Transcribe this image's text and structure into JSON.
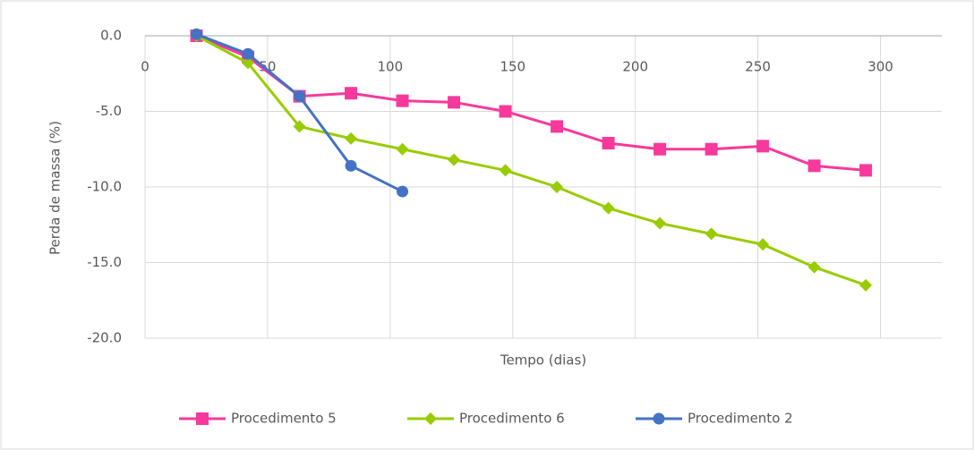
{
  "chart_data": {
    "type": "line",
    "xlabel": "Tempo (dias)",
    "ylabel": "Perda de massa (%)",
    "xlim": [
      0,
      325
    ],
    "xticks": [
      0,
      50,
      100,
      150,
      200,
      250,
      300
    ],
    "ylim": [
      -20,
      0
    ],
    "yticks": [
      {
        "value": 0,
        "label": "0.0"
      },
      {
        "value": -5,
        "label": "-5.0"
      },
      {
        "value": -10,
        "label": "-10.0"
      },
      {
        "value": -15,
        "label": "-15.0"
      },
      {
        "value": -20,
        "label": "-20.0"
      }
    ],
    "grid": true,
    "legend": "bottom",
    "series": [
      {
        "name": "Procedimento 5",
        "color": "#f7399c",
        "marker": "square",
        "x": [
          21,
          42,
          63,
          84,
          105,
          126,
          147,
          168,
          189,
          210,
          231,
          252,
          273,
          294
        ],
        "values": [
          0,
          -1.4,
          -4.0,
          -3.8,
          -4.3,
          -4.4,
          -5.0,
          -6.0,
          -7.1,
          -7.5,
          -7.5,
          -7.3,
          -8.6,
          -8.9
        ]
      },
      {
        "name": "Procedimento 6",
        "color": "#99cc00",
        "marker": "diamond",
        "x": [
          21,
          42,
          63,
          84,
          105,
          126,
          147,
          168,
          189,
          210,
          231,
          252,
          273,
          294
        ],
        "values": [
          0,
          -1.8,
          -6.0,
          -6.8,
          -7.5,
          -8.2,
          -8.9,
          -10.0,
          -11.4,
          -12.4,
          -13.1,
          -13.8,
          -15.3,
          -16.5
        ]
      },
      {
        "name": "Procedimento 2",
        "color": "#4472c4",
        "marker": "circle",
        "x": [
          21,
          42,
          63,
          84,
          105
        ],
        "values": [
          0.1,
          -1.2,
          -4.0,
          -8.6,
          -10.3
        ]
      }
    ]
  }
}
